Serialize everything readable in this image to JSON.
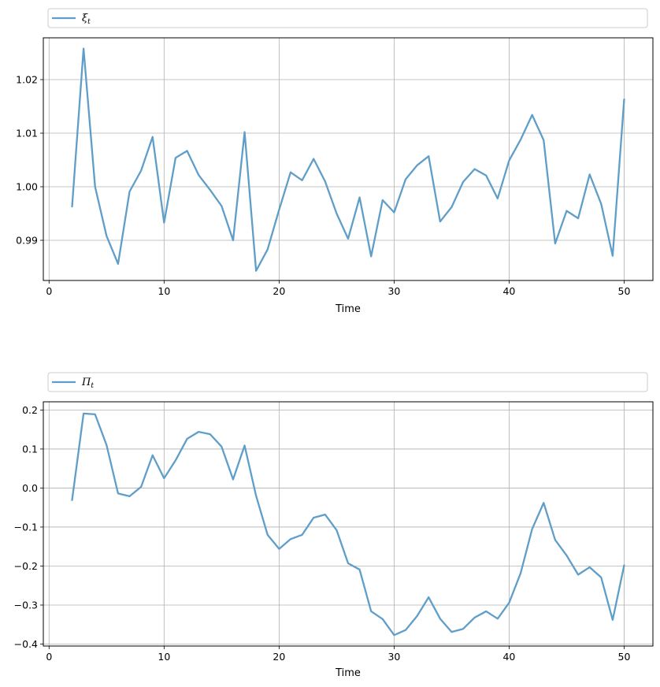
{
  "chart_data": [
    {
      "type": "line",
      "title": "",
      "xlabel": "Time",
      "ylabel": "",
      "xlim": [
        -0.5,
        52.5
      ],
      "ylim": [
        0.9825,
        1.0278
      ],
      "xticks": [
        0,
        10,
        20,
        30,
        40,
        50
      ],
      "xtick_labels": [
        "0",
        "10",
        "20",
        "30",
        "40",
        "50"
      ],
      "yticks": [
        0.99,
        1.0,
        1.01,
        1.02
      ],
      "ytick_labels": [
        "0.99",
        "1.00",
        "1.01",
        "1.02"
      ],
      "grid": true,
      "legend_position": "top",
      "legend": {
        "symbol": "ξ",
        "subscript": "t"
      },
      "color": "#5f9ec9",
      "series": [
        {
          "x": [
            2,
            3,
            4,
            5,
            6,
            7,
            8,
            9,
            10,
            11,
            12,
            13,
            14,
            15,
            16,
            17,
            18,
            19,
            20,
            21,
            22,
            23,
            24,
            25,
            26,
            27,
            28,
            29,
            30,
            31,
            32,
            33,
            34,
            35,
            36,
            37,
            38,
            39,
            40,
            41,
            42,
            43,
            44,
            45,
            46,
            47,
            48,
            49,
            50
          ],
          "values": [
            0.9963,
            1.0258,
            1.0,
            0.9908,
            0.9856,
            0.9991,
            1.003,
            1.0093,
            0.9933,
            1.0054,
            1.0067,
            1.0022,
            0.9994,
            0.9964,
            0.99,
            1.0102,
            0.9843,
            0.9883,
            0.9957,
            1.0027,
            1.0012,
            1.0052,
            1.001,
            0.995,
            0.9903,
            0.998,
            0.987,
            0.9975,
            0.9952,
            1.0014,
            1.004,
            1.0057,
            0.9935,
            0.9962,
            1.0009,
            1.0033,
            1.0021,
            0.9978,
            1.0049,
            1.0088,
            1.0134,
            1.0087,
            0.9894,
            0.9955,
            0.9941,
            1.0023,
            0.9968,
            0.9871,
            1.0163
          ]
        }
      ]
    },
    {
      "type": "line",
      "title": "",
      "xlabel": "Time",
      "ylabel": "",
      "xlim": [
        -0.5,
        52.5
      ],
      "ylim": [
        -0.405,
        0.221
      ],
      "xticks": [
        0,
        10,
        20,
        30,
        40,
        50
      ],
      "xtick_labels": [
        "0",
        "10",
        "20",
        "30",
        "40",
        "50"
      ],
      "yticks": [
        -0.4,
        -0.3,
        -0.2,
        -0.1,
        0.0,
        0.1,
        0.2
      ],
      "ytick_labels": [
        "−0.4",
        "−0.3",
        "−0.2",
        "−0.1",
        "0.0",
        "0.1",
        "0.2"
      ],
      "grid": true,
      "legend_position": "top",
      "legend": {
        "symbol": "Π",
        "subscript": "t"
      },
      "color": "#5f9ec9",
      "series": [
        {
          "x": [
            2,
            3,
            4,
            5,
            6,
            7,
            8,
            9,
            10,
            11,
            12,
            13,
            14,
            15,
            16,
            17,
            18,
            19,
            20,
            21,
            22,
            23,
            24,
            25,
            26,
            27,
            28,
            29,
            30,
            31,
            32,
            33,
            34,
            35,
            36,
            37,
            38,
            39,
            40,
            41,
            42,
            43,
            44,
            45,
            46,
            47,
            48,
            49,
            50
          ],
          "values": [
            -0.031,
            0.191,
            0.189,
            0.11,
            -0.014,
            -0.021,
            0.003,
            0.084,
            0.025,
            0.071,
            0.126,
            0.144,
            0.138,
            0.106,
            0.022,
            0.109,
            -0.02,
            -0.12,
            -0.156,
            -0.131,
            -0.12,
            -0.076,
            -0.068,
            -0.108,
            -0.193,
            -0.209,
            -0.316,
            -0.336,
            -0.377,
            -0.364,
            -0.328,
            -0.28,
            -0.335,
            -0.369,
            -0.361,
            -0.332,
            -0.316,
            -0.335,
            -0.294,
            -0.218,
            -0.105,
            -0.038,
            -0.133,
            -0.173,
            -0.222,
            -0.203,
            -0.229,
            -0.338,
            -0.198
          ]
        }
      ]
    }
  ]
}
